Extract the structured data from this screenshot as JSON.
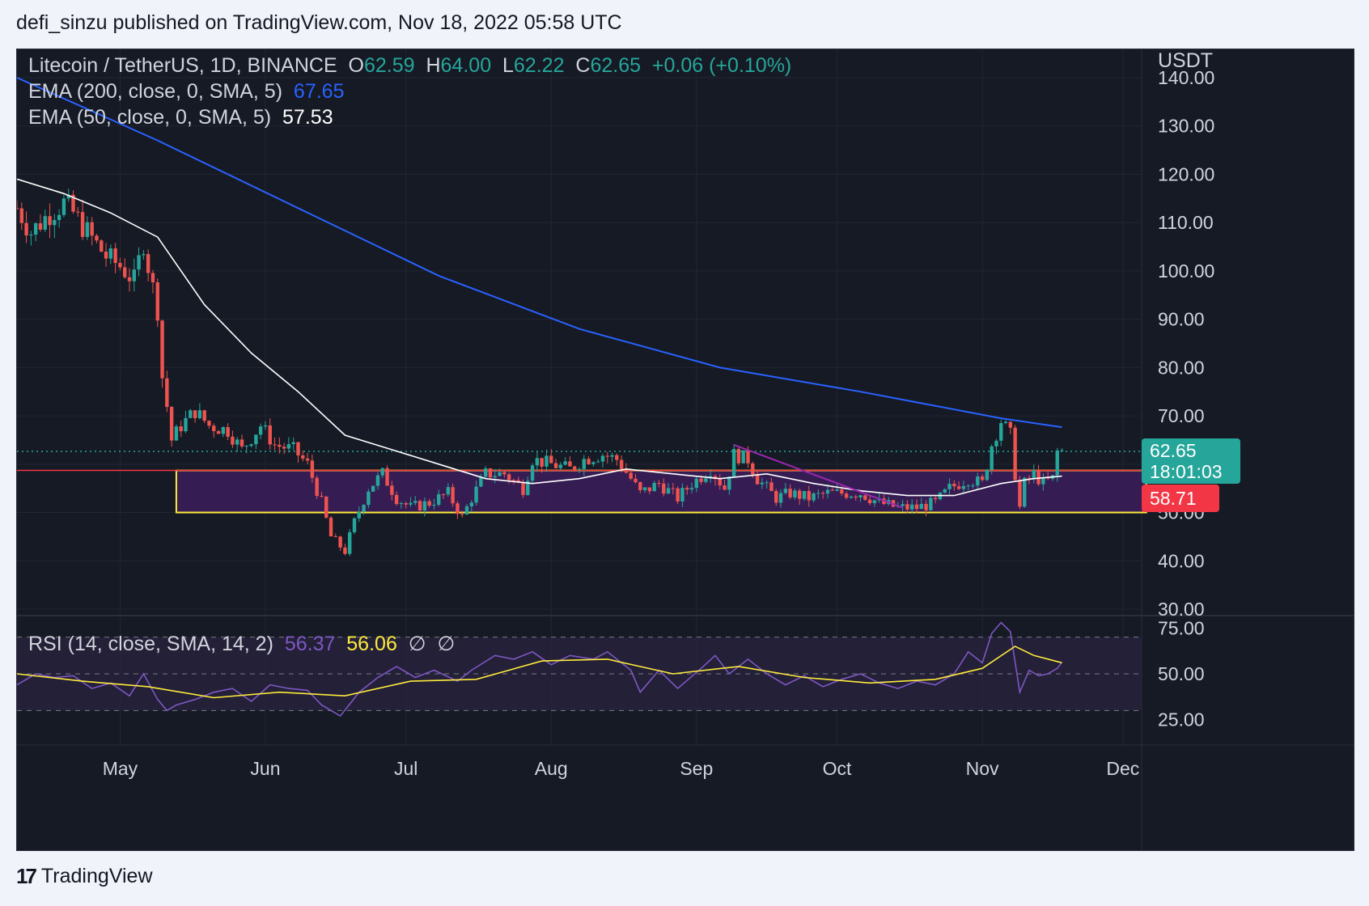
{
  "header": {
    "text": "defi_sinzu published on TradingView.com, Nov 18, 2022 05:58 UTC"
  },
  "symbol": {
    "name": "Litecoin / TetherUS, 1D, BINANCE",
    "o_label": "O",
    "o": "62.59",
    "h_label": "H",
    "h": "64.00",
    "l_label": "L",
    "l": "62.22",
    "c_label": "C",
    "c": "62.65",
    "change": "+0.06 (+0.10%)"
  },
  "ema200": {
    "label": "EMA (200, close, 0, SMA, 5)",
    "value": "67.65",
    "color": "#2962ff"
  },
  "ema50": {
    "label": "EMA (50, close, 0, SMA, 5)",
    "value": "57.53",
    "color": "#ffffff"
  },
  "rsi": {
    "label": "RSI (14, close, SMA, 14, 2)",
    "value": "56.37",
    "sma_value": "56.06",
    "extra1": "∅",
    "extra2": "∅"
  },
  "axis": {
    "currency": "USDT",
    "price_label": "62.65",
    "countdown": "18:01:03",
    "level_label": "58.71"
  },
  "footer": {
    "brand": "TradingView",
    "logo": "17"
  },
  "colors": {
    "up": "#26a69a",
    "down": "#ef5350",
    "zone_fill": "#3b1f5c",
    "zone_border": "#ffeb3b",
    "rsi_line": "#7e57c2",
    "rsi_sma": "#ffeb3b"
  },
  "chart_data": [
    {
      "type": "candlestick",
      "title": "Litecoin / TetherUS, 1D, BINANCE",
      "ylabel": "USDT",
      "ylim": [
        30,
        140
      ],
      "yticks": [
        "140.00",
        "130.00",
        "120.00",
        "110.00",
        "100.00",
        "90.00",
        "80.00",
        "70.00",
        "60.00",
        "50.00",
        "40.00",
        "30.00"
      ],
      "xticks": [
        "May",
        "Jun",
        "Jul",
        "Aug",
        "Sep",
        "Oct",
        "Nov",
        "Dec"
      ],
      "x_start": "2022-04-09",
      "x_end": "2022-12-05",
      "last_date": "2022-11-18",
      "close_path": [
        {
          "date": "2022-04-09",
          "value": 113
        },
        {
          "date": "2022-04-12",
          "value": 108
        },
        {
          "date": "2022-04-16",
          "value": 112
        },
        {
          "date": "2022-04-19",
          "value": 114
        },
        {
          "date": "2022-04-21",
          "value": 112
        },
        {
          "date": "2022-04-24",
          "value": 108
        },
        {
          "date": "2022-04-28",
          "value": 103
        },
        {
          "date": "2022-05-01",
          "value": 101
        },
        {
          "date": "2022-05-04",
          "value": 98
        },
        {
          "date": "2022-05-06",
          "value": 106
        },
        {
          "date": "2022-05-07",
          "value": 101
        },
        {
          "date": "2022-05-09",
          "value": 92
        },
        {
          "date": "2022-05-10",
          "value": 78
        },
        {
          "date": "2022-05-11",
          "value": 72
        },
        {
          "date": "2022-05-12",
          "value": 65
        },
        {
          "date": "2022-05-14",
          "value": 68
        },
        {
          "date": "2022-05-17",
          "value": 71
        },
        {
          "date": "2022-05-20",
          "value": 68
        },
        {
          "date": "2022-05-24",
          "value": 67
        },
        {
          "date": "2022-05-27",
          "value": 63
        },
        {
          "date": "2022-05-31",
          "value": 68
        },
        {
          "date": "2022-06-03",
          "value": 64
        },
        {
          "date": "2022-06-07",
          "value": 63
        },
        {
          "date": "2022-06-10",
          "value": 60
        },
        {
          "date": "2022-06-13",
          "value": 52
        },
        {
          "date": "2022-06-15",
          "value": 45
        },
        {
          "date": "2022-06-18",
          "value": 42
        },
        {
          "date": "2022-06-20",
          "value": 48
        },
        {
          "date": "2022-06-23",
          "value": 55
        },
        {
          "date": "2022-06-26",
          "value": 58
        },
        {
          "date": "2022-06-29",
          "value": 53
        },
        {
          "date": "2022-07-02",
          "value": 51
        },
        {
          "date": "2022-07-06",
          "value": 52
        },
        {
          "date": "2022-07-10",
          "value": 54
        },
        {
          "date": "2022-07-13",
          "value": 49
        },
        {
          "date": "2022-07-15",
          "value": 53
        },
        {
          "date": "2022-07-18",
          "value": 58
        },
        {
          "date": "2022-07-22",
          "value": 58
        },
        {
          "date": "2022-07-26",
          "value": 55
        },
        {
          "date": "2022-07-28",
          "value": 61
        },
        {
          "date": "2022-08-01",
          "value": 60
        },
        {
          "date": "2022-08-05",
          "value": 59
        },
        {
          "date": "2022-08-08",
          "value": 61
        },
        {
          "date": "2022-08-12",
          "value": 62
        },
        {
          "date": "2022-08-15",
          "value": 61
        },
        {
          "date": "2022-08-18",
          "value": 57
        },
        {
          "date": "2022-08-20",
          "value": 54
        },
        {
          "date": "2022-08-24",
          "value": 56
        },
        {
          "date": "2022-08-28",
          "value": 53
        },
        {
          "date": "2022-08-31",
          "value": 56
        },
        {
          "date": "2022-09-04",
          "value": 59
        },
        {
          "date": "2022-09-07",
          "value": 55
        },
        {
          "date": "2022-09-09",
          "value": 62
        },
        {
          "date": "2022-09-12",
          "value": 61
        },
        {
          "date": "2022-09-14",
          "value": 57
        },
        {
          "date": "2022-09-18",
          "value": 53
        },
        {
          "date": "2022-09-21",
          "value": 54
        },
        {
          "date": "2022-09-25",
          "value": 53
        },
        {
          "date": "2022-09-29",
          "value": 54
        },
        {
          "date": "2022-10-03",
          "value": 54
        },
        {
          "date": "2022-10-06",
          "value": 54
        },
        {
          "date": "2022-10-10",
          "value": 52
        },
        {
          "date": "2022-10-14",
          "value": 51
        },
        {
          "date": "2022-10-18",
          "value": 51
        },
        {
          "date": "2022-10-22",
          "value": 52
        },
        {
          "date": "2022-10-25",
          "value": 55
        },
        {
          "date": "2022-10-29",
          "value": 57
        },
        {
          "date": "2022-11-01",
          "value": 56
        },
        {
          "date": "2022-11-03",
          "value": 64
        },
        {
          "date": "2022-11-05",
          "value": 69
        },
        {
          "date": "2022-11-07",
          "value": 66
        },
        {
          "date": "2022-11-08",
          "value": 58
        },
        {
          "date": "2022-11-09",
          "value": 51
        },
        {
          "date": "2022-11-10",
          "value": 56
        },
        {
          "date": "2022-11-12",
          "value": 58
        },
        {
          "date": "2022-11-14",
          "value": 56
        },
        {
          "date": "2022-11-16",
          "value": 57
        },
        {
          "date": "2022-11-17",
          "value": 62.59
        },
        {
          "date": "2022-11-18",
          "value": 62.65
        }
      ],
      "ema200": [
        {
          "date": "2022-04-09",
          "value": 140
        },
        {
          "date": "2022-05-09",
          "value": 127
        },
        {
          "date": "2022-06-08",
          "value": 113
        },
        {
          "date": "2022-07-08",
          "value": 99
        },
        {
          "date": "2022-08-07",
          "value": 88
        },
        {
          "date": "2022-09-06",
          "value": 80
        },
        {
          "date": "2022-10-06",
          "value": 75
        },
        {
          "date": "2022-11-05",
          "value": 69.5
        },
        {
          "date": "2022-11-18",
          "value": 67.65
        }
      ],
      "ema50": [
        {
          "date": "2022-04-09",
          "value": 119
        },
        {
          "date": "2022-04-19",
          "value": 116
        },
        {
          "date": "2022-04-29",
          "value": 112
        },
        {
          "date": "2022-05-09",
          "value": 107
        },
        {
          "date": "2022-05-19",
          "value": 93
        },
        {
          "date": "2022-05-29",
          "value": 83
        },
        {
          "date": "2022-06-08",
          "value": 75
        },
        {
          "date": "2022-06-18",
          "value": 66
        },
        {
          "date": "2022-06-28",
          "value": 63
        },
        {
          "date": "2022-07-08",
          "value": 60
        },
        {
          "date": "2022-07-18",
          "value": 57
        },
        {
          "date": "2022-07-28",
          "value": 56
        },
        {
          "date": "2022-08-07",
          "value": 57
        },
        {
          "date": "2022-08-17",
          "value": 59
        },
        {
          "date": "2022-08-27",
          "value": 58
        },
        {
          "date": "2022-09-06",
          "value": 57
        },
        {
          "date": "2022-09-16",
          "value": 58
        },
        {
          "date": "2022-09-26",
          "value": 56
        },
        {
          "date": "2022-10-06",
          "value": 54.5
        },
        {
          "date": "2022-10-16",
          "value": 53.5
        },
        {
          "date": "2022-10-26",
          "value": 53.5
        },
        {
          "date": "2022-11-05",
          "value": 56
        },
        {
          "date": "2022-11-12",
          "value": 57
        },
        {
          "date": "2022-11-18",
          "value": 57.53
        }
      ],
      "current_price": 62.65,
      "horizontal_level": 58.71,
      "zone": {
        "from": "2022-05-13",
        "to": "2022-12-06",
        "low": 50,
        "high": 58.7
      },
      "trendline": {
        "start": {
          "date": "2022-09-09",
          "value": 64
        },
        "end": {
          "date": "2022-10-15",
          "value": 51
        }
      }
    },
    {
      "type": "line",
      "title": "RSI (14, close, SMA, 14, 2)",
      "ylim": [
        20,
        80
      ],
      "yticks": [
        "75.00",
        "50.00",
        "25.00"
      ],
      "bands": [
        30,
        50,
        70
      ],
      "rsi": [
        {
          "date": "2022-04-09",
          "value": 44
        },
        {
          "date": "2022-04-13",
          "value": 50
        },
        {
          "date": "2022-04-17",
          "value": 48
        },
        {
          "date": "2022-04-21",
          "value": 49
        },
        {
          "date": "2022-04-25",
          "value": 42
        },
        {
          "date": "2022-04-29",
          "value": 45
        },
        {
          "date": "2022-05-03",
          "value": 38
        },
        {
          "date": "2022-05-06",
          "value": 50
        },
        {
          "date": "2022-05-09",
          "value": 36
        },
        {
          "date": "2022-05-11",
          "value": 30
        },
        {
          "date": "2022-05-13",
          "value": 33
        },
        {
          "date": "2022-05-17",
          "value": 36
        },
        {
          "date": "2022-05-21",
          "value": 40
        },
        {
          "date": "2022-05-25",
          "value": 42
        },
        {
          "date": "2022-05-29",
          "value": 35
        },
        {
          "date": "2022-06-02",
          "value": 44
        },
        {
          "date": "2022-06-06",
          "value": 42
        },
        {
          "date": "2022-06-10",
          "value": 41
        },
        {
          "date": "2022-06-13",
          "value": 33
        },
        {
          "date": "2022-06-17",
          "value": 27
        },
        {
          "date": "2022-06-21",
          "value": 40
        },
        {
          "date": "2022-06-25",
          "value": 48
        },
        {
          "date": "2022-06-29",
          "value": 54
        },
        {
          "date": "2022-07-03",
          "value": 48
        },
        {
          "date": "2022-07-07",
          "value": 52
        },
        {
          "date": "2022-07-12",
          "value": 46
        },
        {
          "date": "2022-07-15",
          "value": 52
        },
        {
          "date": "2022-07-20",
          "value": 60
        },
        {
          "date": "2022-07-24",
          "value": 58
        },
        {
          "date": "2022-07-28",
          "value": 62
        },
        {
          "date": "2022-08-01",
          "value": 55
        },
        {
          "date": "2022-08-05",
          "value": 60
        },
        {
          "date": "2022-08-10",
          "value": 58
        },
        {
          "date": "2022-08-13",
          "value": 62
        },
        {
          "date": "2022-08-18",
          "value": 52
        },
        {
          "date": "2022-08-20",
          "value": 40
        },
        {
          "date": "2022-08-24",
          "value": 52
        },
        {
          "date": "2022-08-28",
          "value": 42
        },
        {
          "date": "2022-09-02",
          "value": 53
        },
        {
          "date": "2022-09-05",
          "value": 60
        },
        {
          "date": "2022-09-08",
          "value": 50
        },
        {
          "date": "2022-09-12",
          "value": 58
        },
        {
          "date": "2022-09-16",
          "value": 50
        },
        {
          "date": "2022-09-20",
          "value": 44
        },
        {
          "date": "2022-09-24",
          "value": 49
        },
        {
          "date": "2022-09-28",
          "value": 43
        },
        {
          "date": "2022-10-02",
          "value": 47
        },
        {
          "date": "2022-10-06",
          "value": 50
        },
        {
          "date": "2022-10-10",
          "value": 45
        },
        {
          "date": "2022-10-14",
          "value": 42
        },
        {
          "date": "2022-10-18",
          "value": 46
        },
        {
          "date": "2022-10-22",
          "value": 44
        },
        {
          "date": "2022-10-26",
          "value": 50
        },
        {
          "date": "2022-10-29",
          "value": 62
        },
        {
          "date": "2022-11-01",
          "value": 56
        },
        {
          "date": "2022-11-03",
          "value": 72
        },
        {
          "date": "2022-11-05",
          "value": 78
        },
        {
          "date": "2022-11-07",
          "value": 73
        },
        {
          "date": "2022-11-09",
          "value": 40
        },
        {
          "date": "2022-11-11",
          "value": 52
        },
        {
          "date": "2022-11-13",
          "value": 49
        },
        {
          "date": "2022-11-15",
          "value": 50
        },
        {
          "date": "2022-11-17",
          "value": 53
        },
        {
          "date": "2022-11-18",
          "value": 56.37
        }
      ],
      "rsi_sma": [
        {
          "date": "2022-04-09",
          "value": 50
        },
        {
          "date": "2022-04-23",
          "value": 46
        },
        {
          "date": "2022-05-07",
          "value": 43
        },
        {
          "date": "2022-05-21",
          "value": 37
        },
        {
          "date": "2022-06-04",
          "value": 40
        },
        {
          "date": "2022-06-18",
          "value": 38
        },
        {
          "date": "2022-07-02",
          "value": 46
        },
        {
          "date": "2022-07-16",
          "value": 47
        },
        {
          "date": "2022-07-30",
          "value": 57
        },
        {
          "date": "2022-08-13",
          "value": 58
        },
        {
          "date": "2022-08-27",
          "value": 50
        },
        {
          "date": "2022-09-10",
          "value": 54
        },
        {
          "date": "2022-09-24",
          "value": 48
        },
        {
          "date": "2022-10-08",
          "value": 45
        },
        {
          "date": "2022-10-22",
          "value": 47
        },
        {
          "date": "2022-11-01",
          "value": 53
        },
        {
          "date": "2022-11-08",
          "value": 65
        },
        {
          "date": "2022-11-12",
          "value": 60
        },
        {
          "date": "2022-11-18",
          "value": 56.06
        }
      ]
    }
  ]
}
